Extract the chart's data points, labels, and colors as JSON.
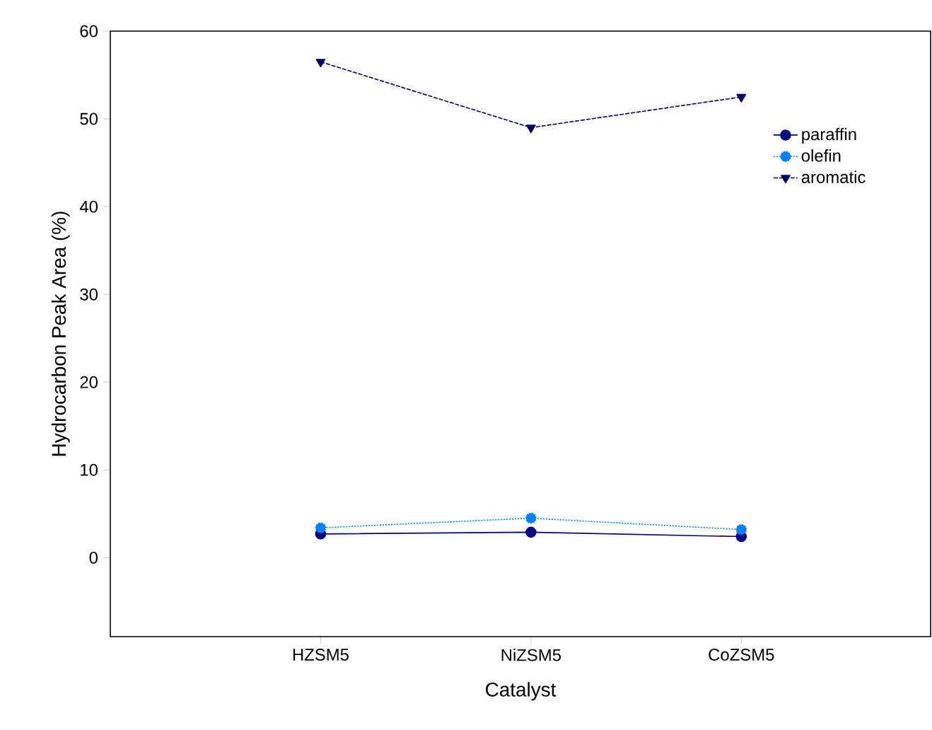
{
  "chart_data": {
    "type": "line",
    "xlabel": "Catalyst",
    "ylabel": "Hydrocarbon Peak Area (%)",
    "categories": [
      "HZSM5",
      "NiZSM5",
      "CoZSM5"
    ],
    "ylim": [
      -9,
      60
    ],
    "yticks": [
      0,
      10,
      20,
      30,
      40,
      50,
      60
    ],
    "grid": false,
    "legend": "top right",
    "series": [
      {
        "name": "paraffin",
        "color": "#000080",
        "marker": "circle",
        "line_style": "solid",
        "values": [
          2.7,
          2.9,
          2.4
        ]
      },
      {
        "name": "olefin",
        "color": "#0080ff",
        "marker": "circle",
        "line_style": "dotted",
        "values": [
          3.4,
          4.5,
          3.2
        ]
      },
      {
        "name": "aromatic",
        "color": "#000060",
        "marker": "triangle",
        "line_style": "dashed",
        "values": [
          56.5,
          49,
          52.5
        ]
      }
    ]
  }
}
